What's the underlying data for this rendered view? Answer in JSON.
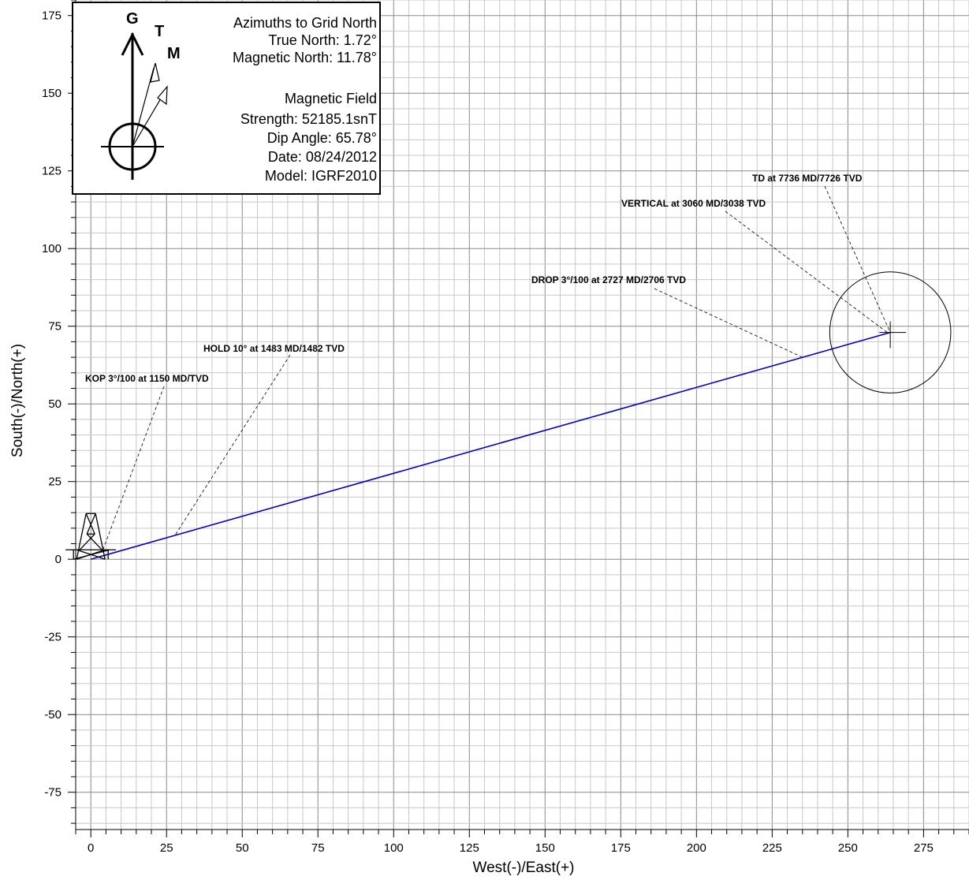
{
  "chart_data": {
    "type": "line",
    "xlabel": "West(-)/East(+)",
    "ylabel": "South(-)/North(+)",
    "xlim": [
      -5,
      290
    ],
    "ylim": [
      -87,
      180
    ],
    "x_ticks": [
      0,
      25,
      50,
      75,
      100,
      125,
      150,
      175,
      200,
      225,
      250,
      275
    ],
    "y_ticks": [
      175,
      150,
      125,
      100,
      75,
      50,
      25,
      0,
      -25,
      -50,
      -75
    ],
    "minor_grid_step": 5,
    "major_grid_step": 25,
    "grid": true,
    "series": [
      {
        "color": "#0000cc",
        "x": [
          0,
          264
        ],
        "y": [
          0,
          73
        ]
      }
    ],
    "target_circle": {
      "center": [
        264,
        73
      ],
      "radius": 20
    },
    "rig": {
      "x": 0,
      "y": 0
    },
    "annotations": [
      {
        "text": "KOP 3°/100 at 1150 MD/TVD",
        "point": [
          4,
          3
        ]
      },
      {
        "text": "HOLD 10° at 1483 MD/1482 TVD",
        "point": [
          28,
          8
        ]
      },
      {
        "text": "DROP 3°/100 at 2727 MD/2706 TVD",
        "point": [
          235,
          65
        ]
      },
      {
        "text": "VERTICAL at 3060 MD/3038 TVD",
        "point": [
          263,
          73
        ]
      },
      {
        "text": "TD at 7736 MD/7726 TVD",
        "point": [
          264,
          73
        ]
      }
    ],
    "legend": {
      "letters": {
        "grid": "G",
        "true": "T",
        "magnetic": "M"
      },
      "lines": [
        "Azimuths to Grid North",
        "True North: 1.72°",
        "Magnetic North: 11.78°",
        "",
        "Magnetic Field",
        "Strength: 52185.1snT",
        "Dip Angle: 65.78°",
        "Date: 08/24/2012",
        "Model: IGRF2010"
      ],
      "true_north_deg": 1.72,
      "magnetic_north_deg": 11.78
    }
  }
}
